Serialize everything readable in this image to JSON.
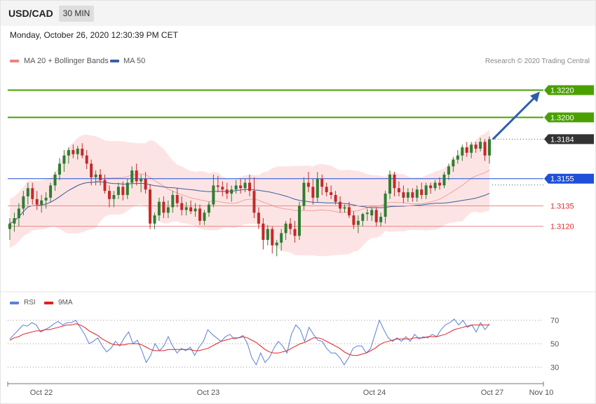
{
  "header": {
    "symbol": "USD/CAD",
    "timeframe": "30 MIN"
  },
  "date_line": "Monday, October 26, 2020 12:30:39 PM CET",
  "legend": {
    "ma20": {
      "label": "MA 20 + Bollinger Bands",
      "color": "#f08080"
    },
    "ma50": {
      "label": "MA 50",
      "color": "#3a5fa0"
    }
  },
  "credit": "Research © 2020 Trading Central",
  "rsi_legend": {
    "rsi": {
      "label": "RSI",
      "color": "#5b7fd8"
    },
    "ma9": {
      "label": "9MA",
      "color": "#e02020"
    }
  },
  "colors": {
    "bull": "#2f7d32",
    "bear": "#c62828",
    "band": "#fde4e4",
    "resistance": "#4aa000",
    "pivot": "#1f4fd8",
    "support": "#e88a8a",
    "current": "#333333",
    "arrow": "#2f5fa8"
  },
  "chart_data": [
    {
      "type": "candlestick",
      "title": "USD/CAD",
      "timeframe": "30 MIN",
      "ylim": [
        1.3075,
        1.3245
      ],
      "x_ticks": [
        "Oct 22",
        "Oct 23",
        "Oct 24",
        "Oct 27",
        "Nov 10"
      ],
      "levels": [
        {
          "value": 1.322,
          "label": "1.3220",
          "kind": "resistance"
        },
        {
          "value": 1.32,
          "label": "1.3200",
          "kind": "resistance"
        },
        {
          "value": 1.3184,
          "label": "1.3184",
          "kind": "current"
        },
        {
          "value": 1.3155,
          "label": "1.3155",
          "kind": "pivot"
        },
        {
          "value": 1.3135,
          "label": "1.3135",
          "kind": "support"
        },
        {
          "value": 1.312,
          "label": "1.3120",
          "kind": "support"
        }
      ],
      "forecast": {
        "from": 1.3184,
        "to": 1.322
      },
      "candles": [
        {
          "o": 1.3118,
          "h": 1.3126,
          "l": 1.311,
          "c": 1.3122
        },
        {
          "o": 1.3122,
          "h": 1.313,
          "l": 1.3116,
          "c": 1.3126
        },
        {
          "o": 1.3126,
          "h": 1.3137,
          "l": 1.312,
          "c": 1.3133
        },
        {
          "o": 1.3133,
          "h": 1.3146,
          "l": 1.3128,
          "c": 1.3142
        },
        {
          "o": 1.3142,
          "h": 1.3152,
          "l": 1.3136,
          "c": 1.3148
        },
        {
          "o": 1.3148,
          "h": 1.3152,
          "l": 1.3136,
          "c": 1.314
        },
        {
          "o": 1.314,
          "h": 1.3146,
          "l": 1.3132,
          "c": 1.3136
        },
        {
          "o": 1.3136,
          "h": 1.3143,
          "l": 1.313,
          "c": 1.3139
        },
        {
          "o": 1.3139,
          "h": 1.3145,
          "l": 1.3133,
          "c": 1.3141
        },
        {
          "o": 1.3141,
          "h": 1.3152,
          "l": 1.3138,
          "c": 1.315
        },
        {
          "o": 1.315,
          "h": 1.316,
          "l": 1.3146,
          "c": 1.3158
        },
        {
          "o": 1.3158,
          "h": 1.317,
          "l": 1.3154,
          "c": 1.3166
        },
        {
          "o": 1.3166,
          "h": 1.3176,
          "l": 1.316,
          "c": 1.3172
        },
        {
          "o": 1.3172,
          "h": 1.3178,
          "l": 1.3166,
          "c": 1.3176
        },
        {
          "o": 1.3176,
          "h": 1.318,
          "l": 1.317,
          "c": 1.3173
        },
        {
          "o": 1.3173,
          "h": 1.3179,
          "l": 1.3169,
          "c": 1.3177
        },
        {
          "o": 1.3177,
          "h": 1.3181,
          "l": 1.317,
          "c": 1.3172
        },
        {
          "o": 1.3172,
          "h": 1.3176,
          "l": 1.3162,
          "c": 1.3166
        },
        {
          "o": 1.3166,
          "h": 1.3169,
          "l": 1.315,
          "c": 1.3156
        },
        {
          "o": 1.3156,
          "h": 1.3161,
          "l": 1.315,
          "c": 1.3158
        },
        {
          "o": 1.3158,
          "h": 1.3162,
          "l": 1.315,
          "c": 1.3154
        },
        {
          "o": 1.3154,
          "h": 1.3158,
          "l": 1.3144,
          "c": 1.3146
        },
        {
          "o": 1.3146,
          "h": 1.315,
          "l": 1.3134,
          "c": 1.314
        },
        {
          "o": 1.314,
          "h": 1.3146,
          "l": 1.3134,
          "c": 1.3143
        },
        {
          "o": 1.3143,
          "h": 1.3152,
          "l": 1.314,
          "c": 1.3149
        },
        {
          "o": 1.3149,
          "h": 1.3153,
          "l": 1.3139,
          "c": 1.3143
        },
        {
          "o": 1.3143,
          "h": 1.3155,
          "l": 1.314,
          "c": 1.3152
        },
        {
          "o": 1.3152,
          "h": 1.3164,
          "l": 1.3148,
          "c": 1.3161
        },
        {
          "o": 1.3161,
          "h": 1.3166,
          "l": 1.315,
          "c": 1.3153
        },
        {
          "o": 1.3153,
          "h": 1.3158,
          "l": 1.3145,
          "c": 1.3155
        },
        {
          "o": 1.3155,
          "h": 1.316,
          "l": 1.3144,
          "c": 1.3147
        },
        {
          "o": 1.3147,
          "h": 1.3151,
          "l": 1.3118,
          "c": 1.3122
        },
        {
          "o": 1.3122,
          "h": 1.313,
          "l": 1.3118,
          "c": 1.3128
        },
        {
          "o": 1.3128,
          "h": 1.3141,
          "l": 1.3124,
          "c": 1.3138
        },
        {
          "o": 1.3138,
          "h": 1.3142,
          "l": 1.3126,
          "c": 1.313
        },
        {
          "o": 1.313,
          "h": 1.3139,
          "l": 1.3126,
          "c": 1.3134
        },
        {
          "o": 1.3134,
          "h": 1.3146,
          "l": 1.313,
          "c": 1.3143
        },
        {
          "o": 1.3143,
          "h": 1.3148,
          "l": 1.3134,
          "c": 1.3137
        },
        {
          "o": 1.3137,
          "h": 1.3142,
          "l": 1.3128,
          "c": 1.3132
        },
        {
          "o": 1.3132,
          "h": 1.3138,
          "l": 1.3128,
          "c": 1.3134
        },
        {
          "o": 1.3134,
          "h": 1.3139,
          "l": 1.3129,
          "c": 1.3131
        },
        {
          "o": 1.3131,
          "h": 1.3137,
          "l": 1.3127,
          "c": 1.3133
        },
        {
          "o": 1.3133,
          "h": 1.3136,
          "l": 1.3121,
          "c": 1.3124
        },
        {
          "o": 1.3124,
          "h": 1.3132,
          "l": 1.3121,
          "c": 1.313
        },
        {
          "o": 1.313,
          "h": 1.3138,
          "l": 1.3127,
          "c": 1.3136
        },
        {
          "o": 1.3136,
          "h": 1.3158,
          "l": 1.3134,
          "c": 1.315
        },
        {
          "o": 1.315,
          "h": 1.3157,
          "l": 1.3145,
          "c": 1.3149
        },
        {
          "o": 1.3149,
          "h": 1.3153,
          "l": 1.3142,
          "c": 1.3147
        },
        {
          "o": 1.3147,
          "h": 1.3152,
          "l": 1.314,
          "c": 1.3144
        },
        {
          "o": 1.3144,
          "h": 1.315,
          "l": 1.3138,
          "c": 1.3147
        },
        {
          "o": 1.3147,
          "h": 1.3154,
          "l": 1.3144,
          "c": 1.315
        },
        {
          "o": 1.315,
          "h": 1.3155,
          "l": 1.3144,
          "c": 1.3148
        },
        {
          "o": 1.3148,
          "h": 1.3155,
          "l": 1.3145,
          "c": 1.3152
        },
        {
          "o": 1.3152,
          "h": 1.3158,
          "l": 1.3142,
          "c": 1.3146
        },
        {
          "o": 1.3146,
          "h": 1.3156,
          "l": 1.3126,
          "c": 1.313
        },
        {
          "o": 1.313,
          "h": 1.3134,
          "l": 1.3118,
          "c": 1.3122
        },
        {
          "o": 1.3122,
          "h": 1.3126,
          "l": 1.3103,
          "c": 1.311
        },
        {
          "o": 1.311,
          "h": 1.3121,
          "l": 1.3106,
          "c": 1.3118
        },
        {
          "o": 1.3118,
          "h": 1.312,
          "l": 1.31,
          "c": 1.3106
        },
        {
          "o": 1.3106,
          "h": 1.311,
          "l": 1.3098,
          "c": 1.3108
        },
        {
          "o": 1.3108,
          "h": 1.3118,
          "l": 1.3102,
          "c": 1.3115
        },
        {
          "o": 1.3115,
          "h": 1.3124,
          "l": 1.311,
          "c": 1.3122
        },
        {
          "o": 1.3122,
          "h": 1.3126,
          "l": 1.3114,
          "c": 1.3118
        },
        {
          "o": 1.3118,
          "h": 1.3124,
          "l": 1.3108,
          "c": 1.3113
        },
        {
          "o": 1.3113,
          "h": 1.3138,
          "l": 1.311,
          "c": 1.3135
        },
        {
          "o": 1.3135,
          "h": 1.3156,
          "l": 1.3132,
          "c": 1.3152
        },
        {
          "o": 1.3152,
          "h": 1.316,
          "l": 1.3145,
          "c": 1.3149
        },
        {
          "o": 1.3149,
          "h": 1.3155,
          "l": 1.3136,
          "c": 1.3141
        },
        {
          "o": 1.3141,
          "h": 1.316,
          "l": 1.3138,
          "c": 1.3155
        },
        {
          "o": 1.3155,
          "h": 1.3158,
          "l": 1.3143,
          "c": 1.3149
        },
        {
          "o": 1.3149,
          "h": 1.3152,
          "l": 1.3142,
          "c": 1.3145
        },
        {
          "o": 1.3145,
          "h": 1.315,
          "l": 1.314,
          "c": 1.3143
        },
        {
          "o": 1.3143,
          "h": 1.3146,
          "l": 1.3136,
          "c": 1.3138
        },
        {
          "o": 1.3138,
          "h": 1.3142,
          "l": 1.313,
          "c": 1.3133
        },
        {
          "o": 1.3133,
          "h": 1.3136,
          "l": 1.313,
          "c": 1.3134
        },
        {
          "o": 1.3134,
          "h": 1.3138,
          "l": 1.3126,
          "c": 1.3128
        },
        {
          "o": 1.3128,
          "h": 1.3131,
          "l": 1.3118,
          "c": 1.3121
        },
        {
          "o": 1.3121,
          "h": 1.3128,
          "l": 1.3115,
          "c": 1.3124
        },
        {
          "o": 1.3124,
          "h": 1.313,
          "l": 1.312,
          "c": 1.3129
        },
        {
          "o": 1.3129,
          "h": 1.3133,
          "l": 1.3124,
          "c": 1.313
        },
        {
          "o": 1.3128,
          "h": 1.3134,
          "l": 1.3124,
          "c": 1.3132
        },
        {
          "o": 1.3132,
          "h": 1.3134,
          "l": 1.312,
          "c": 1.3123
        },
        {
          "o": 1.3123,
          "h": 1.313,
          "l": 1.312,
          "c": 1.3127
        },
        {
          "o": 1.3127,
          "h": 1.3146,
          "l": 1.3122,
          "c": 1.3144
        },
        {
          "o": 1.3144,
          "h": 1.3161,
          "l": 1.314,
          "c": 1.3158
        },
        {
          "o": 1.3158,
          "h": 1.316,
          "l": 1.3142,
          "c": 1.3148
        },
        {
          "o": 1.3148,
          "h": 1.3153,
          "l": 1.3142,
          "c": 1.3145
        },
        {
          "o": 1.3145,
          "h": 1.315,
          "l": 1.3137,
          "c": 1.3141
        },
        {
          "o": 1.3141,
          "h": 1.3148,
          "l": 1.3138,
          "c": 1.3145
        },
        {
          "o": 1.3145,
          "h": 1.3148,
          "l": 1.3138,
          "c": 1.3141
        },
        {
          "o": 1.3141,
          "h": 1.315,
          "l": 1.3138,
          "c": 1.3147
        },
        {
          "o": 1.3147,
          "h": 1.3152,
          "l": 1.314,
          "c": 1.3143
        },
        {
          "o": 1.3143,
          "h": 1.3152,
          "l": 1.314,
          "c": 1.315
        },
        {
          "o": 1.315,
          "h": 1.3152,
          "l": 1.3144,
          "c": 1.3148
        },
        {
          "o": 1.3148,
          "h": 1.3154,
          "l": 1.3146,
          "c": 1.3152
        },
        {
          "o": 1.3152,
          "h": 1.3156,
          "l": 1.3147,
          "c": 1.315
        },
        {
          "o": 1.315,
          "h": 1.316,
          "l": 1.3148,
          "c": 1.3158
        },
        {
          "o": 1.3158,
          "h": 1.3166,
          "l": 1.3154,
          "c": 1.3164
        },
        {
          "o": 1.3164,
          "h": 1.3171,
          "l": 1.316,
          "c": 1.3169
        },
        {
          "o": 1.3169,
          "h": 1.3176,
          "l": 1.3166,
          "c": 1.3172
        },
        {
          "o": 1.3172,
          "h": 1.318,
          "l": 1.3168,
          "c": 1.3178
        },
        {
          "o": 1.3178,
          "h": 1.3182,
          "l": 1.3171,
          "c": 1.3174
        },
        {
          "o": 1.3174,
          "h": 1.3182,
          "l": 1.317,
          "c": 1.318
        },
        {
          "o": 1.318,
          "h": 1.3182,
          "l": 1.3174,
          "c": 1.3177
        },
        {
          "o": 1.3177,
          "h": 1.3185,
          "l": 1.3175,
          "c": 1.3182
        },
        {
          "o": 1.3182,
          "h": 1.3184,
          "l": 1.3168,
          "c": 1.3172
        },
        {
          "o": 1.3172,
          "h": 1.3186,
          "l": 1.3166,
          "c": 1.3184
        }
      ]
    },
    {
      "type": "line",
      "title": "RSI",
      "ylim": [
        20,
        80
      ],
      "y_ticks": [
        70,
        50,
        30
      ],
      "series": [
        {
          "name": "RSI",
          "values": [
            54,
            58,
            62,
            66,
            65,
            68,
            66,
            60,
            62,
            64,
            67,
            69,
            66,
            68,
            68,
            70,
            64,
            58,
            50,
            52,
            55,
            48,
            43,
            46,
            52,
            48,
            55,
            60,
            50,
            53,
            44,
            34,
            40,
            50,
            44,
            48,
            56,
            48,
            42,
            46,
            44,
            47,
            40,
            47,
            52,
            62,
            58,
            55,
            52,
            56,
            58,
            54,
            55,
            57,
            50,
            38,
            32,
            42,
            34,
            38,
            46,
            52,
            48,
            42,
            58,
            66,
            62,
            52,
            64,
            58,
            53,
            52,
            46,
            42,
            42,
            38,
            32,
            38,
            46,
            48,
            48,
            42,
            46,
            58,
            70,
            62,
            55,
            52,
            55,
            52,
            56,
            52,
            58,
            54,
            56,
            55,
            58,
            56,
            62,
            66,
            68,
            71,
            66,
            70,
            64,
            66,
            60,
            68,
            62,
            67
          ],
          "color": "#5b7fd8"
        },
        {
          "name": "9MA",
          "values": [
            53,
            55,
            56,
            58,
            59,
            60,
            61,
            61,
            62,
            62,
            63,
            64,
            65,
            66,
            66,
            67,
            66,
            64,
            61,
            59,
            57,
            54,
            52,
            50,
            49,
            49,
            49,
            50,
            50,
            50,
            49,
            47,
            45,
            44,
            44,
            44,
            45,
            45,
            45,
            45,
            45,
            45,
            44,
            44,
            45,
            46,
            48,
            50,
            52,
            53,
            54,
            55,
            55,
            56,
            55,
            53,
            51,
            48,
            45,
            43,
            42,
            42,
            43,
            44,
            46,
            48,
            50,
            51,
            53,
            55,
            55,
            54,
            52,
            50,
            48,
            46,
            43,
            41,
            40,
            40,
            41,
            42,
            44,
            46,
            49,
            51,
            52,
            53,
            54,
            54,
            54,
            54,
            55,
            55,
            55,
            56,
            56,
            56,
            57,
            58,
            60,
            62,
            63,
            64,
            65,
            66,
            66,
            66,
            66,
            66
          ],
          "color": "#e02020"
        }
      ]
    }
  ]
}
